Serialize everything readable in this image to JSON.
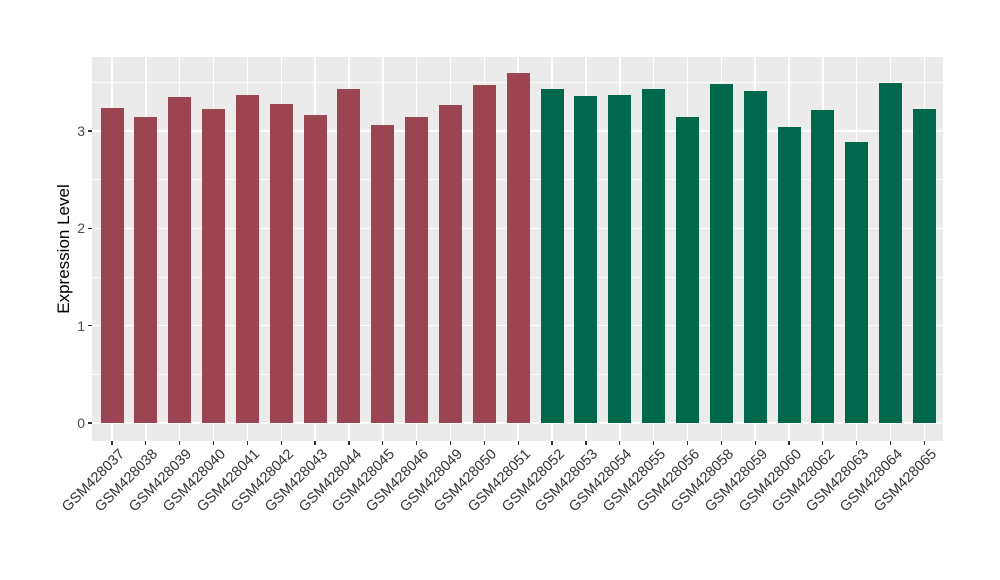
{
  "chart_data": {
    "type": "bar",
    "title": "",
    "xlabel": "",
    "ylabel": "Expression Level",
    "ylim": [
      0,
      3.76
    ],
    "yticks": [
      0,
      1,
      2,
      3
    ],
    "grid": "on",
    "legend": "none",
    "categories": [
      "GSM428037",
      "GSM428038",
      "GSM428039",
      "GSM428040",
      "GSM428041",
      "GSM428042",
      "GSM428043",
      "GSM428044",
      "GSM428045",
      "GSM428046",
      "GSM428049",
      "GSM428050",
      "GSM428051",
      "GSM428052",
      "GSM428053",
      "GSM428054",
      "GSM428055",
      "GSM428056",
      "GSM428058",
      "GSM428059",
      "GSM428060",
      "GSM428062",
      "GSM428063",
      "GSM428064",
      "GSM428065"
    ],
    "values": [
      3.24,
      3.14,
      3.35,
      3.23,
      3.37,
      3.28,
      3.17,
      3.43,
      3.06,
      3.14,
      3.27,
      3.47,
      3.6,
      3.43,
      3.36,
      3.37,
      3.43,
      3.14,
      3.48,
      3.41,
      3.04,
      3.22,
      2.89,
      3.49,
      3.23
    ],
    "groups": [
      "maroon",
      "maroon",
      "maroon",
      "maroon",
      "maroon",
      "maroon",
      "maroon",
      "maroon",
      "maroon",
      "maroon",
      "maroon",
      "maroon",
      "maroon",
      "green",
      "green",
      "green",
      "green",
      "green",
      "green",
      "green",
      "green",
      "green",
      "green",
      "green",
      "green"
    ],
    "group_colors": {
      "maroon": "#9D4453",
      "green": "#00684A"
    }
  },
  "colors": {
    "figure_background": "#FFFFFF",
    "panel_background": "#EBEBEB",
    "grid_major": "#FFFFFF",
    "grid_minor": "#FFFFFF",
    "axis_tick_text": "#4A4A4A",
    "axis_title_text": "#000000",
    "tick_mark": "#333333"
  }
}
